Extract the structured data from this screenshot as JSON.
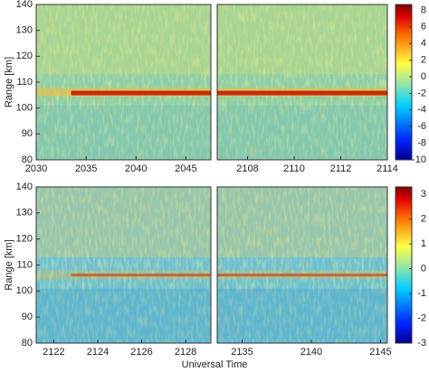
{
  "x_label": "Universal Time",
  "chart_data": [
    {
      "type": "heatmap",
      "y_label": "Range [km]",
      "xlim": [
        2030,
        2047.5
      ],
      "xticks": [
        2030,
        2035,
        2040,
        2045
      ],
      "ylim": [
        80,
        140
      ],
      "yticks": [
        80,
        90,
        100,
        110,
        120,
        130,
        140
      ]
    },
    {
      "type": "heatmap",
      "xlim": [
        2106.7,
        2114
      ],
      "xticks": [
        2108,
        2110,
        2112,
        2114
      ],
      "ylim": [
        80,
        140
      ],
      "colorbar": {
        "lim": [
          -10,
          8.7
        ],
        "ticks": [
          -10,
          -8,
          -6,
          -4,
          -2,
          0,
          2,
          4,
          6,
          8
        ]
      }
    },
    {
      "type": "heatmap",
      "y_label": "Range [km]",
      "xlim": [
        2121.2,
        2129.15
      ],
      "xticks": [
        2122,
        2124,
        2126,
        2128
      ],
      "ylim": [
        80,
        140
      ],
      "yticks": [
        80,
        90,
        100,
        110,
        120,
        130,
        140
      ]
    },
    {
      "type": "heatmap",
      "xlim": [
        2133.2,
        2145.5
      ],
      "xticks": [
        2135,
        2140,
        2145
      ],
      "ylim": [
        80,
        140
      ],
      "colorbar": {
        "lim": [
          -3,
          3.3
        ],
        "ticks": [
          -3,
          -2,
          -1,
          0,
          1,
          2,
          3
        ]
      }
    }
  ]
}
